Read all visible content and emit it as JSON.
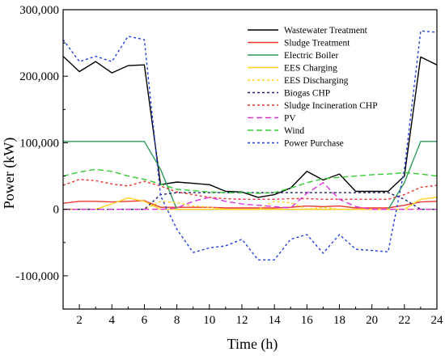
{
  "chart_data": {
    "type": "line",
    "xlabel": "Time (h)",
    "ylabel": "Power (kW)",
    "xlim": [
      1,
      24
    ],
    "ylim": [
      -150000,
      300000
    ],
    "x_ticks": [
      2,
      4,
      6,
      8,
      10,
      12,
      14,
      16,
      18,
      20,
      22,
      24
    ],
    "y_ticks": [
      -100000,
      0,
      100000,
      200000,
      300000
    ],
    "x_tick_labels": [
      "2",
      "4",
      "6",
      "8",
      "10",
      "12",
      "14",
      "16",
      "18",
      "20",
      "22",
      "24"
    ],
    "y_tick_labels": [
      "-100,000",
      "0",
      "100,000",
      "200,000",
      "300,000"
    ],
    "legend_position": "top-right",
    "grid": false,
    "x": [
      1,
      2,
      3,
      4,
      5,
      6,
      7,
      8,
      9,
      10,
      11,
      12,
      13,
      14,
      15,
      16,
      17,
      18,
      19,
      20,
      21,
      22,
      23,
      24
    ],
    "series": [
      {
        "name": "Wastewater Treatment",
        "color": "#000000",
        "dash": "solid",
        "values": [
          230000,
          207000,
          222000,
          205000,
          216000,
          217000,
          37000,
          41000,
          39000,
          37000,
          27000,
          26000,
          18000,
          22000,
          32000,
          57000,
          44000,
          53000,
          27000,
          27000,
          27000,
          50000,
          229000,
          217000
        ]
      },
      {
        "name": "Sludge Treatment",
        "color": "#e8372d",
        "dash": "solid",
        "values": [
          9000,
          12000,
          12000,
          11000,
          12000,
          13000,
          3000,
          3000,
          3000,
          3000,
          2000,
          2000,
          2000,
          2000,
          3000,
          5000,
          4000,
          5000,
          2000,
          2000,
          2000,
          6000,
          11000,
          12000
        ]
      },
      {
        "name": "Electric Boiler",
        "color": "#2e9a5a",
        "dash": "solid",
        "values": [
          102000,
          102000,
          102000,
          102000,
          102000,
          102000,
          60000,
          0,
          0,
          0,
          0,
          0,
          0,
          0,
          0,
          0,
          0,
          0,
          0,
          0,
          0,
          40000,
          102000,
          102000
        ]
      },
      {
        "name": "EES Charging",
        "color": "#ffd11a",
        "dash": "solid",
        "values": [
          0,
          0,
          0,
          8000,
          17000,
          12000,
          0,
          0,
          0,
          0,
          0,
          0,
          0,
          0,
          0,
          0,
          0,
          0,
          0,
          0,
          0,
          0,
          15000,
          18000
        ]
      },
      {
        "name": "EES Discharging",
        "color": "#ffd11a",
        "dash": "dot",
        "values": [
          0,
          0,
          0,
          0,
          0,
          0,
          12000,
          10000,
          5000,
          3000,
          0,
          0,
          0,
          12000,
          10000,
          0,
          3000,
          0,
          0,
          0,
          0,
          0,
          0,
          0
        ]
      },
      {
        "name": "Biogas CHP",
        "color": "#1a1f6e",
        "dash": "dot",
        "values": [
          0,
          0,
          0,
          0,
          0,
          0,
          22000,
          25000,
          25000,
          25000,
          25000,
          25000,
          25000,
          25000,
          25000,
          25000,
          25000,
          25000,
          25000,
          25000,
          25000,
          15000,
          0,
          0
        ]
      },
      {
        "name": "Sludge Incineration CHP",
        "color": "#e8372d",
        "dash": "dot",
        "values": [
          36000,
          45000,
          43000,
          38000,
          35000,
          42000,
          35000,
          26000,
          22000,
          18000,
          16000,
          15000,
          15000,
          15000,
          16000,
          16000,
          15000,
          15000,
          15000,
          15000,
          15000,
          22000,
          33000,
          36000
        ]
      },
      {
        "name": "PV",
        "color": "#dd33dd",
        "dash": "dash",
        "values": [
          0,
          0,
          0,
          0,
          0,
          0,
          0,
          2000,
          12000,
          18000,
          12000,
          8000,
          6000,
          4000,
          2000,
          24000,
          40000,
          15000,
          4000,
          0,
          0,
          0,
          0,
          0
        ]
      },
      {
        "name": "Wind",
        "color": "#33cc33",
        "dash": "dash",
        "values": [
          50000,
          56000,
          60000,
          57000,
          50000,
          45000,
          38000,
          30000,
          28000,
          26000,
          25000,
          25000,
          24000,
          25000,
          32000,
          40000,
          46000,
          48000,
          50000,
          52000,
          53000,
          55000,
          53000,
          50000
        ]
      },
      {
        "name": "Power Purchase",
        "color": "#1f3fd9",
        "dash": "dot",
        "values": [
          255000,
          222000,
          230000,
          222000,
          260000,
          255000,
          20000,
          -30000,
          -65000,
          -58000,
          -55000,
          -45000,
          -76000,
          -76000,
          -45000,
          -38000,
          -66000,
          -38000,
          -60000,
          -62000,
          -64000,
          60000,
          268000,
          266000
        ]
      }
    ]
  }
}
